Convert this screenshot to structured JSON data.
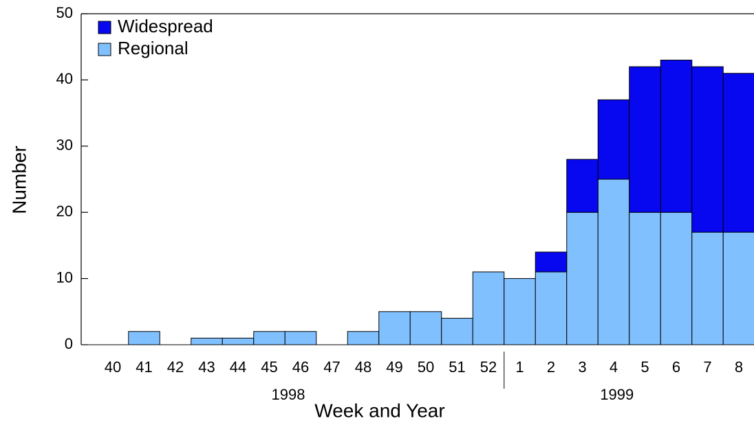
{
  "chart_data": {
    "type": "stacked-bar",
    "xlabel": "Week and Year",
    "ylabel": "Number",
    "categories": [
      "40",
      "41",
      "42",
      "43",
      "44",
      "45",
      "46",
      "47",
      "48",
      "49",
      "50",
      "51",
      "52",
      "1",
      "2",
      "3",
      "4",
      "5",
      "6",
      "7",
      "8"
    ],
    "year_groups": [
      {
        "label": "1998",
        "categories": 13
      },
      {
        "label": "1999",
        "categories": 8
      }
    ],
    "series": [
      {
        "name": "Regional",
        "color": "#80c0ff",
        "values": [
          0,
          2,
          0,
          1,
          1,
          2,
          2,
          0,
          2,
          5,
          5,
          4,
          11,
          10,
          11,
          20,
          25,
          20,
          20,
          17,
          17
        ]
      },
      {
        "name": "Widespread",
        "color": "#0808f0",
        "values": [
          0,
          0,
          0,
          0,
          0,
          0,
          0,
          0,
          0,
          0,
          0,
          0,
          0,
          0,
          3,
          8,
          12,
          22,
          23,
          25,
          24
        ]
      }
    ],
    "ylim": [
      0,
      50
    ],
    "yticks": [
      0,
      10,
      20,
      30,
      40,
      50
    ],
    "legend": "top-left"
  }
}
